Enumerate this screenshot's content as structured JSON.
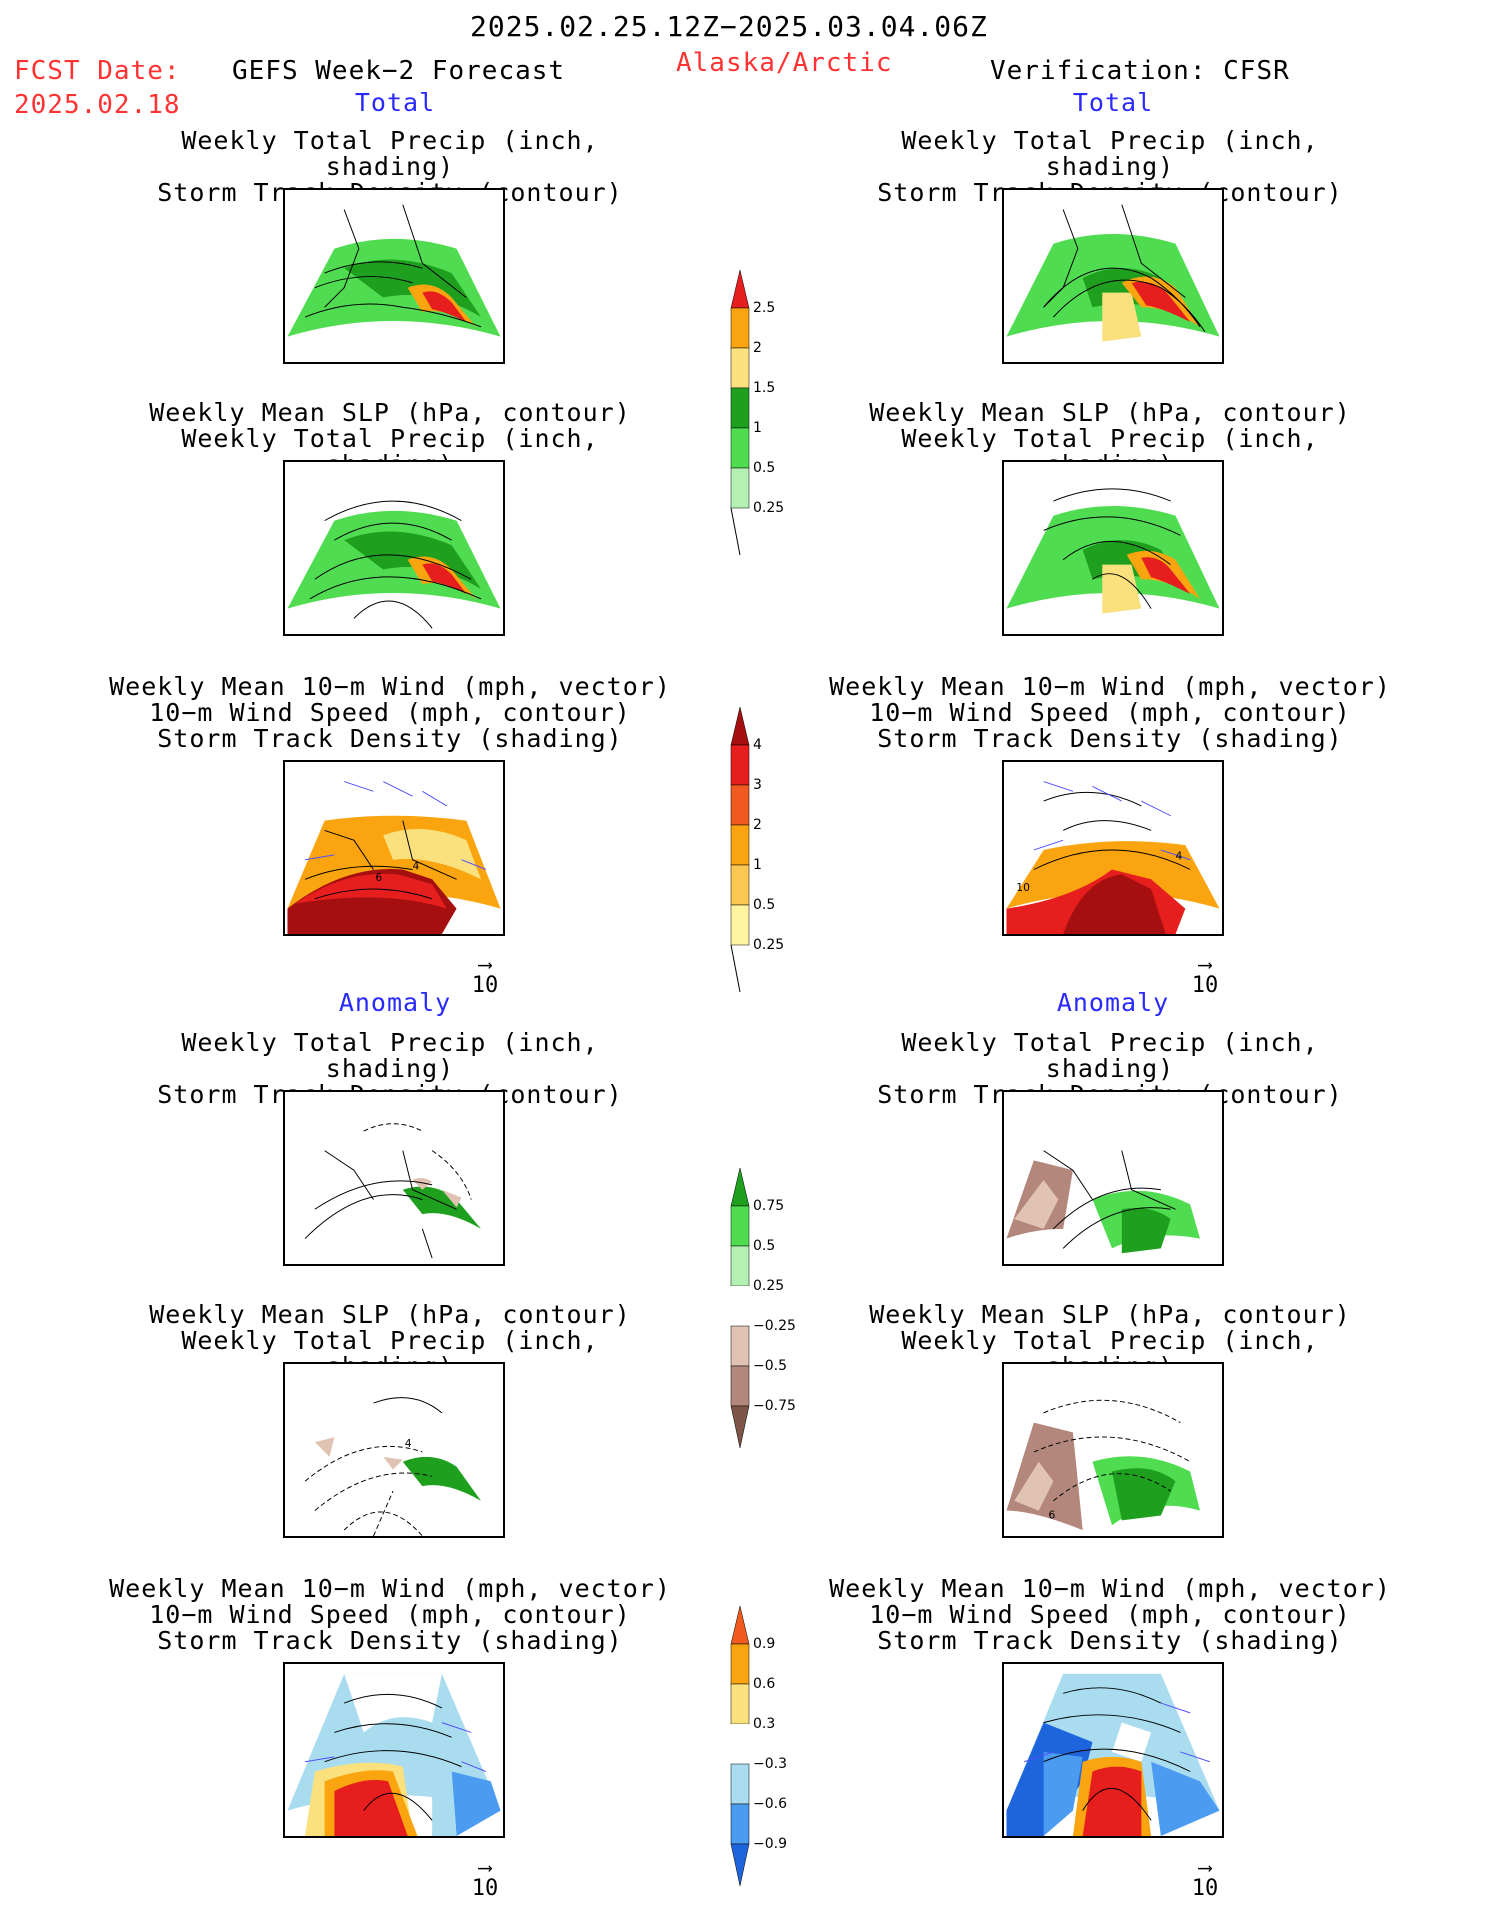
{
  "header": {
    "period": "2025.02.25.12Z−2025.03.04.06Z",
    "fcst_label": "FCST Date:",
    "fcst_date": "2025.02.18",
    "product": "GEFS Week−2 Forecast",
    "region": "Alaska/Arctic",
    "verification": "Verification: CFSR"
  },
  "sections": {
    "total_left": "Total",
    "total_right": "Total",
    "anomaly_left": "Anomaly",
    "anomaly_right": "Anomaly"
  },
  "panel_titles": {
    "precip_track": [
      "Weekly Total Precip (inch, shading)",
      "Storm Track Density (contour)"
    ],
    "slp_precip": [
      "Weekly Mean SLP (hPa, contour)",
      "Weekly Total Precip (inch, shading)"
    ],
    "wind_track": [
      "Weekly Mean 10−m Wind (mph, vector)",
      "10−m Wind Speed (mph, contour)",
      "Storm Track Density (shading)"
    ]
  },
  "map_labels": {
    "fcst_wind_total_a": "6",
    "fcst_wind_total_b": "4",
    "ver_wind_total_a": "10",
    "ver_wind_total_b": "4",
    "fcst_slp_anom": "4",
    "ver_slp_anom": "6"
  },
  "vector_ref": "10",
  "colors": {
    "green_light": "#b4f0b4",
    "green": "#50dc50",
    "green_dark": "#1ea01e",
    "yellow": "#fae17d",
    "orange": "#faa50f",
    "red": "#e61e1e",
    "dark_red": "#a50f0f",
    "brown_light": "#e1c3b4",
    "brown": "#b4877d",
    "brown_dark": "#7d5546",
    "blue_light": "#aadcf0",
    "blue": "#4b9bf0",
    "blue_dark": "#1e64dc"
  },
  "colorbars": {
    "precip_total": [
      "2.5",
      "2",
      "1.5",
      "1",
      "0.5",
      "0.25"
    ],
    "track_total": [
      "4",
      "3",
      "2",
      "1",
      "0.5",
      "0.25"
    ],
    "precip_anom": [
      "0.75",
      "0.5",
      "0.25",
      "−0.25",
      "−0.5",
      "−0.75"
    ],
    "track_anom": [
      "0.9",
      "0.6",
      "0.3",
      "−0.3",
      "−0.6",
      "−0.9"
    ]
  }
}
